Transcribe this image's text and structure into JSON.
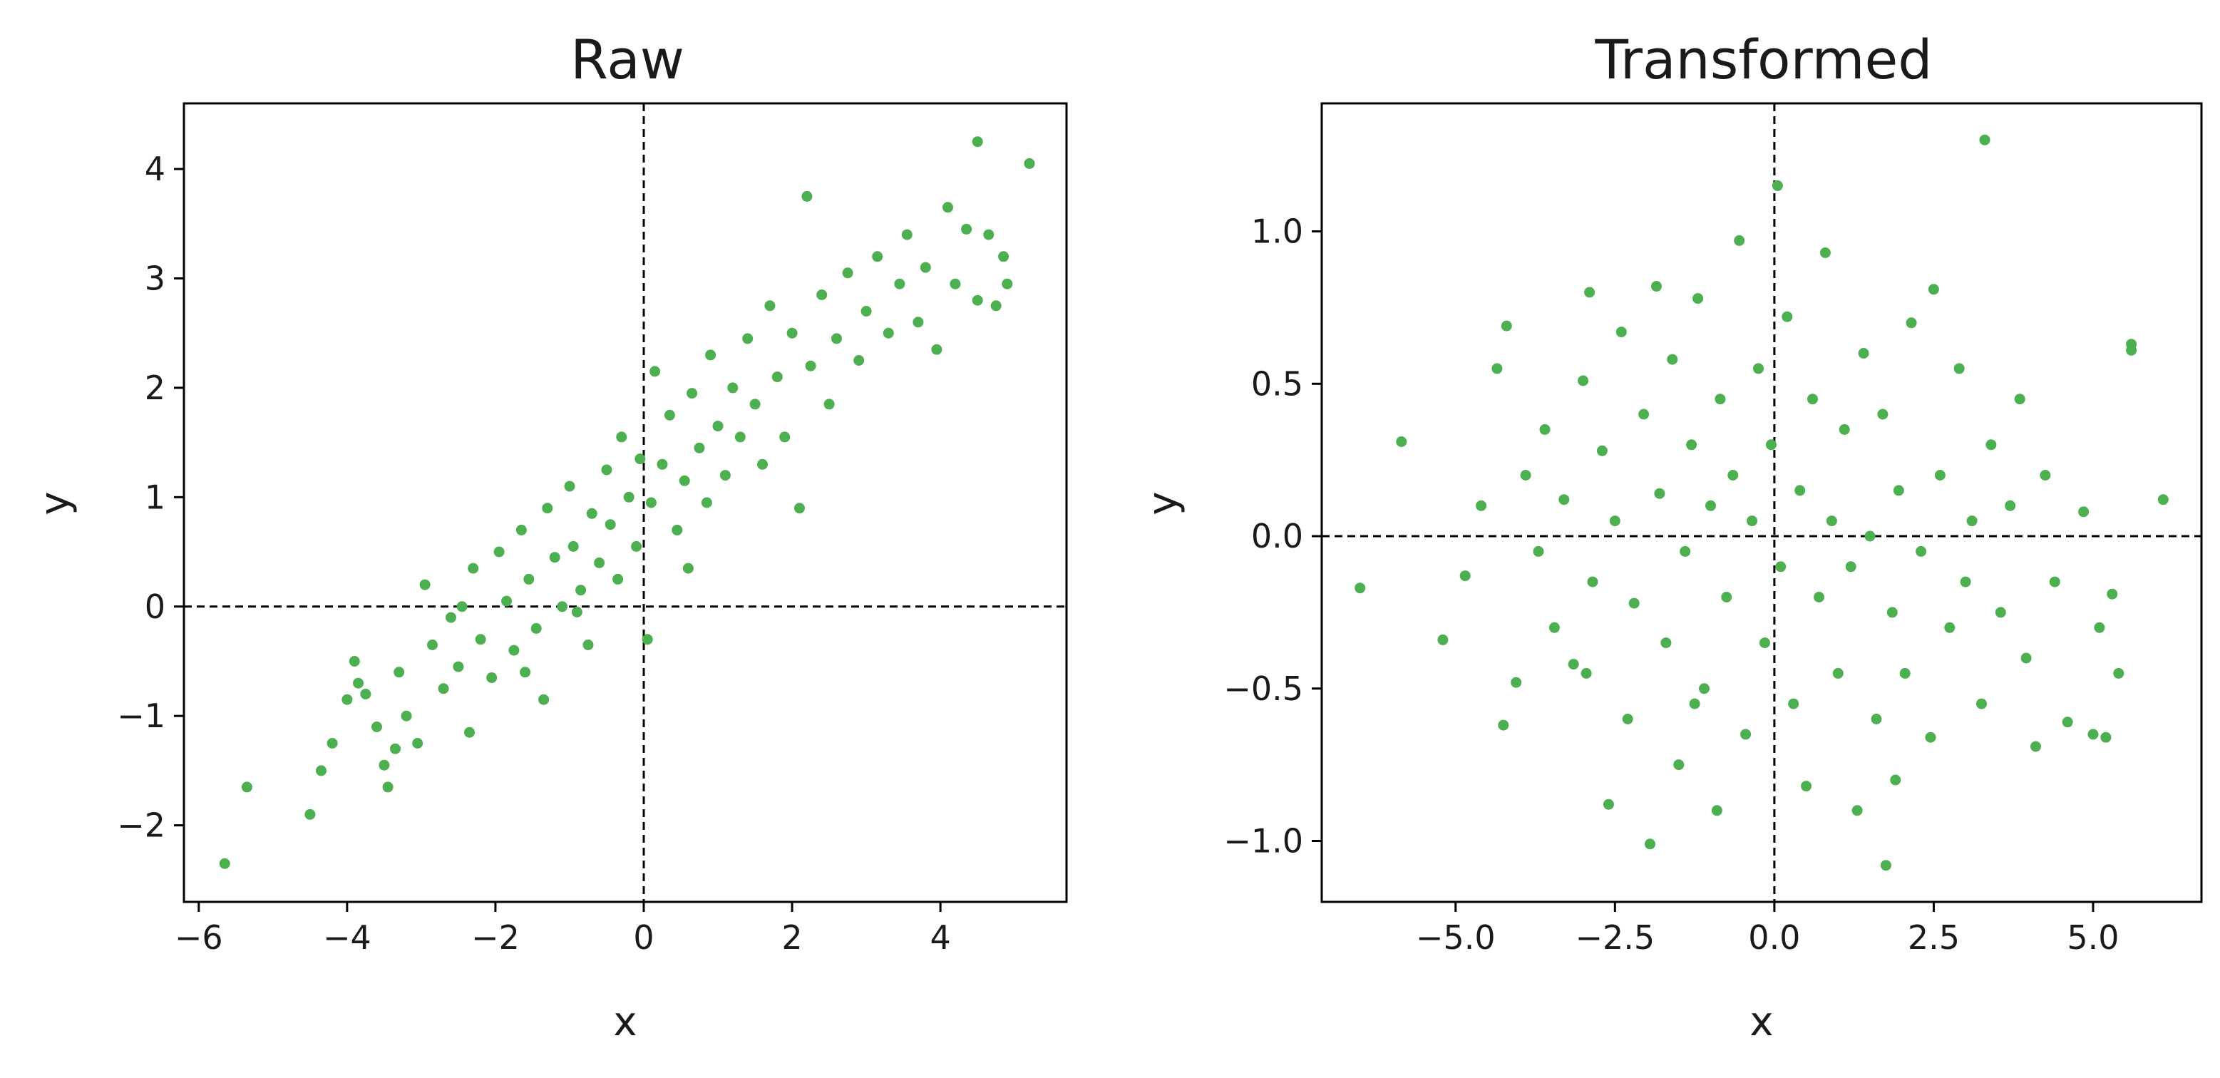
{
  "figure": {
    "background": "#ffffff",
    "point_color": "#4caf50",
    "reference_line_color": "#000000"
  },
  "chart_data": [
    {
      "type": "scatter",
      "title": "Raw",
      "xlabel": "x",
      "ylabel": "y",
      "xlim": [
        -6.2,
        5.7
      ],
      "ylim": [
        -2.7,
        4.6
      ],
      "xticks": [
        -6,
        -4,
        -2,
        0,
        2,
        4
      ],
      "xtick_labels": [
        "−6",
        "−4",
        "−2",
        "0",
        "2",
        "4"
      ],
      "yticks": [
        -2,
        -1,
        0,
        1,
        2,
        3,
        4
      ],
      "ytick_labels": [
        "−2",
        "−1",
        "0",
        "1",
        "2",
        "3",
        "4"
      ],
      "reference_lines": {
        "x": 0,
        "y": 0,
        "style": "dashed"
      },
      "grid": false,
      "series": [
        {
          "color": "#4caf50",
          "points": [
            [
              -5.65,
              -2.35
            ],
            [
              -5.35,
              -1.65
            ],
            [
              -4.5,
              -1.9
            ],
            [
              -4.35,
              -1.5
            ],
            [
              -4.2,
              -1.25
            ],
            [
              -4.0,
              -0.85
            ],
            [
              -3.9,
              -0.5
            ],
            [
              -3.75,
              -0.8
            ],
            [
              -3.6,
              -1.1
            ],
            [
              -3.5,
              -1.45
            ],
            [
              -3.45,
              -1.65
            ],
            [
              -3.3,
              -0.6
            ],
            [
              -3.2,
              -1.0
            ],
            [
              -3.05,
              -1.25
            ],
            [
              -2.95,
              0.2
            ],
            [
              -2.85,
              -0.35
            ],
            [
              -2.7,
              -0.75
            ],
            [
              -2.6,
              -0.1
            ],
            [
              -2.5,
              -0.55
            ],
            [
              -2.35,
              -1.15
            ],
            [
              -2.3,
              0.35
            ],
            [
              -2.2,
              -0.3
            ],
            [
              -2.05,
              -0.65
            ],
            [
              -1.95,
              0.5
            ],
            [
              -1.85,
              0.05
            ],
            [
              -1.75,
              -0.4
            ],
            [
              -1.65,
              0.7
            ],
            [
              -1.55,
              0.25
            ],
            [
              -1.45,
              -0.2
            ],
            [
              -1.35,
              -0.85
            ],
            [
              -1.3,
              0.9
            ],
            [
              -1.2,
              0.45
            ],
            [
              -1.1,
              0.0
            ],
            [
              -1.0,
              1.1
            ],
            [
              -0.95,
              0.55
            ],
            [
              -0.85,
              0.15
            ],
            [
              -0.75,
              -0.35
            ],
            [
              -0.7,
              0.85
            ],
            [
              -0.6,
              0.4
            ],
            [
              -0.5,
              1.25
            ],
            [
              -0.45,
              0.75
            ],
            [
              -0.35,
              0.25
            ],
            [
              -0.3,
              1.55
            ],
            [
              -0.2,
              1.0
            ],
            [
              -0.1,
              0.55
            ],
            [
              -0.05,
              1.35
            ],
            [
              0.05,
              -0.3
            ],
            [
              0.1,
              0.95
            ],
            [
              0.15,
              2.15
            ],
            [
              0.25,
              1.3
            ],
            [
              0.35,
              1.75
            ],
            [
              0.45,
              0.7
            ],
            [
              0.55,
              1.15
            ],
            [
              0.65,
              1.95
            ],
            [
              0.75,
              1.45
            ],
            [
              0.85,
              0.95
            ],
            [
              0.9,
              2.3
            ],
            [
              1.0,
              1.65
            ],
            [
              1.1,
              1.2
            ],
            [
              1.2,
              2.0
            ],
            [
              1.3,
              1.55
            ],
            [
              1.4,
              2.45
            ],
            [
              1.5,
              1.85
            ],
            [
              1.6,
              1.3
            ],
            [
              1.7,
              2.75
            ],
            [
              1.8,
              2.1
            ],
            [
              1.9,
              1.55
            ],
            [
              2.0,
              2.5
            ],
            [
              2.1,
              0.9
            ],
            [
              2.2,
              3.75
            ],
            [
              2.25,
              2.2
            ],
            [
              2.4,
              2.85
            ],
            [
              2.5,
              1.85
            ],
            [
              2.6,
              2.45
            ],
            [
              2.75,
              3.05
            ],
            [
              2.9,
              2.25
            ],
            [
              3.0,
              2.7
            ],
            [
              3.15,
              3.2
            ],
            [
              3.3,
              2.5
            ],
            [
              3.45,
              2.95
            ],
            [
              3.55,
              3.4
            ],
            [
              3.7,
              2.6
            ],
            [
              3.8,
              3.1
            ],
            [
              3.95,
              2.35
            ],
            [
              4.1,
              3.65
            ],
            [
              4.2,
              2.95
            ],
            [
              4.35,
              3.45
            ],
            [
              4.5,
              4.25
            ],
            [
              4.5,
              2.8
            ],
            [
              4.65,
              3.4
            ],
            [
              4.75,
              2.75
            ],
            [
              4.85,
              3.2
            ],
            [
              4.9,
              2.95
            ],
            [
              5.2,
              4.05
            ],
            [
              -3.85,
              -0.7
            ],
            [
              -3.35,
              -1.3
            ],
            [
              -2.45,
              0.0
            ],
            [
              -1.6,
              -0.6
            ],
            [
              -0.9,
              -0.05
            ],
            [
              0.6,
              0.35
            ]
          ]
        }
      ]
    },
    {
      "type": "scatter",
      "title": "Transformed",
      "xlabel": "x",
      "ylabel": "y",
      "xlim": [
        -7.1,
        6.7
      ],
      "ylim": [
        -1.2,
        1.42
      ],
      "xticks": [
        -5.0,
        -2.5,
        0.0,
        2.5,
        5.0
      ],
      "xtick_labels": [
        "−5.0",
        "−2.5",
        "0.0",
        "2.5",
        "5.0"
      ],
      "yticks": [
        -1.0,
        -0.5,
        0.0,
        0.5,
        1.0
      ],
      "ytick_labels": [
        "−1.0",
        "−0.5",
        "0.0",
        "0.5",
        "1.0"
      ],
      "reference_lines": {
        "x": 0,
        "y": 0,
        "style": "dashed"
      },
      "grid": false,
      "series": [
        {
          "color": "#4caf50",
          "points": [
            [
              -6.5,
              -0.17
            ],
            [
              -5.85,
              0.31
            ],
            [
              -5.2,
              -0.34
            ],
            [
              -4.85,
              -0.13
            ],
            [
              -4.6,
              0.1
            ],
            [
              -4.35,
              0.55
            ],
            [
              -4.2,
              0.69
            ],
            [
              -4.25,
              -0.62
            ],
            [
              -4.05,
              -0.48
            ],
            [
              -3.9,
              0.2
            ],
            [
              -3.7,
              -0.05
            ],
            [
              -3.6,
              0.35
            ],
            [
              -3.45,
              -0.3
            ],
            [
              -3.3,
              0.12
            ],
            [
              -3.15,
              -0.42
            ],
            [
              -3.0,
              0.51
            ],
            [
              -2.9,
              0.8
            ],
            [
              -2.85,
              -0.15
            ],
            [
              -2.7,
              0.28
            ],
            [
              -2.6,
              -0.88
            ],
            [
              -2.5,
              0.05
            ],
            [
              -2.4,
              0.67
            ],
            [
              -2.3,
              -0.6
            ],
            [
              -2.2,
              -0.22
            ],
            [
              -2.05,
              0.4
            ],
            [
              -1.95,
              -1.01
            ],
            [
              -1.85,
              0.82
            ],
            [
              -1.8,
              0.14
            ],
            [
              -1.7,
              -0.35
            ],
            [
              -1.6,
              0.58
            ],
            [
              -1.5,
              -0.75
            ],
            [
              -1.4,
              -0.05
            ],
            [
              -1.3,
              0.3
            ],
            [
              -1.2,
              0.78
            ],
            [
              -1.1,
              -0.5
            ],
            [
              -1.0,
              0.1
            ],
            [
              -0.9,
              -0.9
            ],
            [
              -0.85,
              0.45
            ],
            [
              -0.75,
              -0.2
            ],
            [
              -0.65,
              0.2
            ],
            [
              -0.55,
              0.97
            ],
            [
              -0.45,
              -0.65
            ],
            [
              -0.35,
              0.05
            ],
            [
              -0.25,
              0.55
            ],
            [
              -0.15,
              -0.35
            ],
            [
              -0.05,
              0.3
            ],
            [
              0.05,
              1.15
            ],
            [
              0.1,
              -0.1
            ],
            [
              0.2,
              0.72
            ],
            [
              0.3,
              -0.55
            ],
            [
              0.4,
              0.15
            ],
            [
              0.5,
              -0.82
            ],
            [
              0.6,
              0.45
            ],
            [
              0.7,
              -0.2
            ],
            [
              0.8,
              0.93
            ],
            [
              0.9,
              0.05
            ],
            [
              1.0,
              -0.45
            ],
            [
              1.1,
              0.35
            ],
            [
              1.2,
              -0.1
            ],
            [
              1.3,
              -0.9
            ],
            [
              1.4,
              0.6
            ],
            [
              1.5,
              0.0
            ],
            [
              1.6,
              -0.6
            ],
            [
              1.7,
              0.4
            ],
            [
              1.75,
              -1.08
            ],
            [
              1.85,
              -0.25
            ],
            [
              1.95,
              0.15
            ],
            [
              2.05,
              -0.45
            ],
            [
              2.15,
              0.7
            ],
            [
              2.3,
              -0.05
            ],
            [
              2.45,
              -0.66
            ],
            [
              2.5,
              0.81
            ],
            [
              2.6,
              0.2
            ],
            [
              2.75,
              -0.3
            ],
            [
              2.9,
              0.55
            ],
            [
              3.0,
              -0.15
            ],
            [
              3.1,
              0.05
            ],
            [
              3.25,
              -0.55
            ],
            [
              3.3,
              1.3
            ],
            [
              3.4,
              0.3
            ],
            [
              3.55,
              -0.25
            ],
            [
              3.7,
              0.1
            ],
            [
              3.85,
              0.45
            ],
            [
              3.95,
              -0.4
            ],
            [
              4.1,
              -0.69
            ],
            [
              4.25,
              0.2
            ],
            [
              4.4,
              -0.15
            ],
            [
              4.6,
              -0.61
            ],
            [
              4.85,
              0.08
            ],
            [
              5.0,
              -0.65
            ],
            [
              5.1,
              -0.3
            ],
            [
              5.2,
              -0.66
            ],
            [
              5.3,
              -0.19
            ],
            [
              5.4,
              -0.45
            ],
            [
              5.6,
              0.63
            ],
            [
              5.6,
              0.61
            ],
            [
              6.1,
              0.12
            ],
            [
              -2.95,
              -0.45
            ],
            [
              1.9,
              -0.8
            ],
            [
              -1.25,
              -0.55
            ]
          ]
        }
      ]
    }
  ]
}
